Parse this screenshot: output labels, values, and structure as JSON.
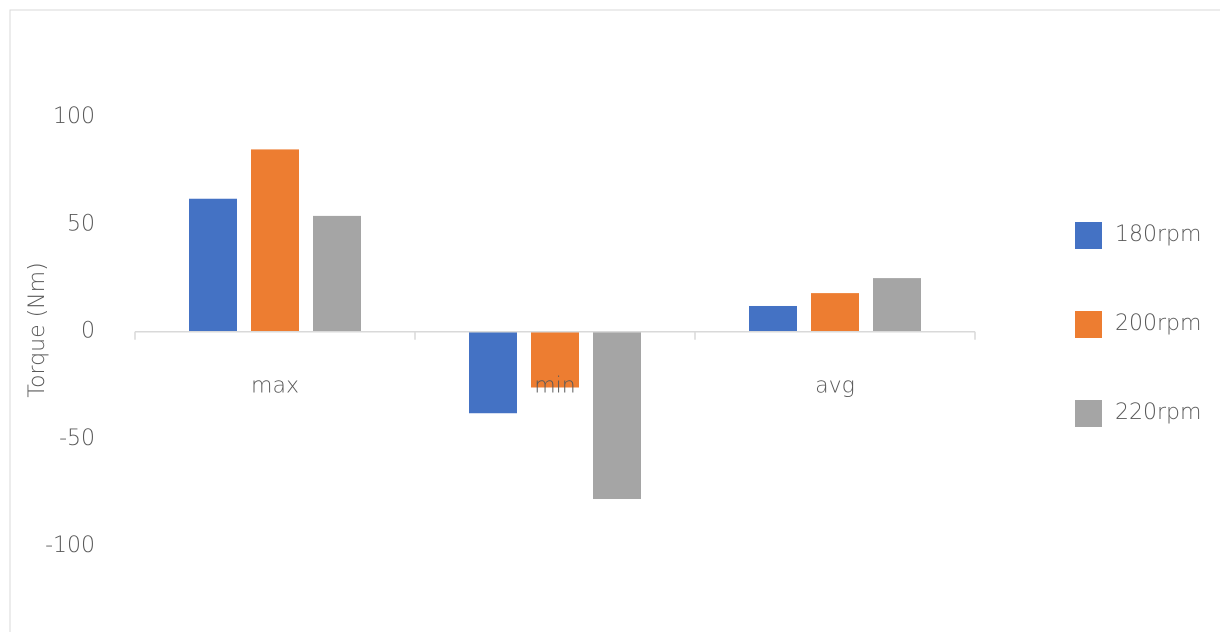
{
  "chart_data": {
    "type": "bar",
    "y_label": "Torque (Nm)",
    "categories": [
      "max",
      "min",
      "avg"
    ],
    "series": [
      {
        "name": "180rpm",
        "color": "#4472c4",
        "values": [
          62,
          -38,
          12
        ]
      },
      {
        "name": "200rpm",
        "color": "#ed7d31",
        "values": [
          85,
          -26,
          18
        ]
      },
      {
        "name": "220rpm",
        "color": "#a5a5a5",
        "values": [
          54,
          -78,
          25
        ]
      }
    ],
    "ylim": [
      -140,
      150
    ],
    "yticks": [
      -100,
      -50,
      0,
      50,
      100
    ],
    "grid": false,
    "legend": "right"
  }
}
